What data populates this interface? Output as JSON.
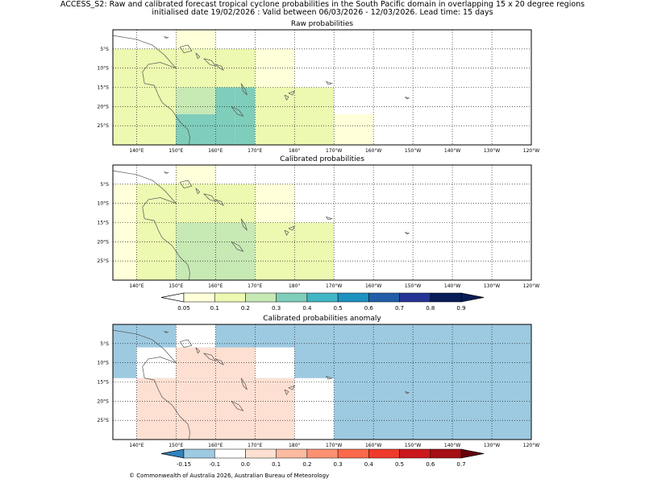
{
  "figure": {
    "title_line1": "ACCESS_S2: Raw and calibrated forecast tropical cyclone probabilities in the South Pacific domain in overlapping 15 x 20 degree regions",
    "title_line2": "initialised date 19/02/2026 :  Valid between 06/03/2026 - 12/03/2026. Lead time: 15 days",
    "copyright": "© Commonwealth of Australia 2026, Australian Bureau of Meteorology"
  },
  "chart_data": [
    {
      "type": "heatmap",
      "title": "Raw probabilities",
      "xlim": [
        134,
        240
      ],
      "ylim": [
        -30,
        0
      ],
      "x_ticks": [
        140,
        150,
        160,
        170,
        180,
        190,
        200,
        210,
        220,
        230,
        240
      ],
      "x_tick_labels": [
        "140°E",
        "150°E",
        "160°E",
        "170°E",
        "180°",
        "170°W",
        "160°W",
        "150°W",
        "140°W",
        "130°W",
        "120°W"
      ],
      "y_ticks": [
        -5,
        -10,
        -15,
        -20,
        -25
      ],
      "y_tick_labels": [
        "5°S",
        "10°S",
        "15°S",
        "20°S",
        "25°S"
      ],
      "grid": true,
      "cells": [
        {
          "lon": [
            134,
            150
          ],
          "lat": [
            -30,
            -5
          ],
          "value": 0.1
        },
        {
          "lon": [
            150,
            160
          ],
          "lat": [
            -5,
            0
          ],
          "value": 0.05
        },
        {
          "lon": [
            150,
            170
          ],
          "lat": [
            -15,
            -5
          ],
          "value": 0.1
        },
        {
          "lon": [
            170,
            180
          ],
          "lat": [
            -15,
            -5
          ],
          "value": 0.05
        },
        {
          "lon": [
            150,
            160
          ],
          "lat": [
            -22,
            -15
          ],
          "value": 0.2
        },
        {
          "lon": [
            160,
            165
          ],
          "lat": [
            -30,
            -15
          ],
          "value": 0.3
        },
        {
          "lon": [
            150,
            160
          ],
          "lat": [
            -30,
            -22
          ],
          "value": 0.3
        },
        {
          "lon": [
            165,
            170
          ],
          "lat": [
            -30,
            -15
          ],
          "value": 0.3
        },
        {
          "lon": [
            170,
            190
          ],
          "lat": [
            -30,
            -15
          ],
          "value": 0.1
        },
        {
          "lon": [
            190,
            200
          ],
          "lat": [
            -30,
            -22
          ],
          "value": 0.05
        }
      ]
    },
    {
      "type": "heatmap",
      "title": "Calibrated probabilities",
      "xlim": [
        134,
        240
      ],
      "ylim": [
        -30,
        0
      ],
      "x_ticks": [
        140,
        150,
        160,
        170,
        180,
        190,
        200,
        210,
        220,
        230,
        240
      ],
      "x_tick_labels": [
        "140°E",
        "150°E",
        "160°E",
        "170°E",
        "180°",
        "170°W",
        "160°W",
        "150°W",
        "140°W",
        "130°W",
        "120°W"
      ],
      "y_ticks": [
        -5,
        -10,
        -15,
        -20,
        -25
      ],
      "y_tick_labels": [
        "5°S",
        "10°S",
        "15°S",
        "20°S",
        "25°S"
      ],
      "grid": true,
      "cells": [
        {
          "lon": [
            134,
            150
          ],
          "lat": [
            -30,
            -5
          ],
          "value": 0.05
        },
        {
          "lon": [
            150,
            160
          ],
          "lat": [
            -5,
            0
          ],
          "value": 0.05
        },
        {
          "lon": [
            140,
            150
          ],
          "lat": [
            -30,
            -5
          ],
          "value": 0.1
        },
        {
          "lon": [
            150,
            170
          ],
          "lat": [
            -15,
            -5
          ],
          "value": 0.1
        },
        {
          "lon": [
            170,
            180
          ],
          "lat": [
            -15,
            -5
          ],
          "value": 0.05
        },
        {
          "lon": [
            150,
            170
          ],
          "lat": [
            -30,
            -15
          ],
          "value": 0.2
        },
        {
          "lon": [
            170,
            190
          ],
          "lat": [
            -30,
            -15
          ],
          "value": 0.1
        }
      ]
    },
    {
      "type": "heatmap",
      "title": "Calibrated probabilities anomaly",
      "xlim": [
        134,
        240
      ],
      "ylim": [
        -30,
        0
      ],
      "x_ticks": [
        140,
        150,
        160,
        170,
        180,
        190,
        200,
        210,
        220,
        230,
        240
      ],
      "x_tick_labels": [
        "140°E",
        "150°E",
        "160°E",
        "170°E",
        "180°",
        "170°W",
        "160°W",
        "150°W",
        "140°W",
        "130°W",
        "120°W"
      ],
      "y_ticks": [
        -5,
        -10,
        -15,
        -20,
        -25
      ],
      "y_tick_labels": [
        "5°S",
        "10°S",
        "15°S",
        "20°S",
        "25°S"
      ],
      "grid": true,
      "cells": [
        {
          "lon": [
            134,
            240
          ],
          "lat": [
            -30,
            0
          ],
          "value": -0.15
        },
        {
          "lon": [
            150,
            160
          ],
          "lat": [
            -6,
            0
          ],
          "value": -0.1
        },
        {
          "lon": [
            140,
            150
          ],
          "lat": [
            -14,
            -6
          ],
          "value": -0.1
        },
        {
          "lon": [
            150,
            170
          ],
          "lat": [
            -14,
            -6
          ],
          "value": 0.0
        },
        {
          "lon": [
            170,
            180
          ],
          "lat": [
            -14,
            -6
          ],
          "value": -0.1
        },
        {
          "lon": [
            134,
            140
          ],
          "lat": [
            -30,
            -14
          ],
          "value": -0.1
        },
        {
          "lon": [
            140,
            150
          ],
          "lat": [
            -30,
            -14
          ],
          "value": 0.0
        },
        {
          "lon": [
            150,
            170
          ],
          "lat": [
            -30,
            -14
          ],
          "value": 0.05
        },
        {
          "lon": [
            170,
            180
          ],
          "lat": [
            -30,
            -14
          ],
          "value": 0.0
        },
        {
          "lon": [
            180,
            190
          ],
          "lat": [
            -30,
            -14
          ],
          "value": -0.1
        }
      ]
    }
  ],
  "colorbars": {
    "probability": {
      "tick_labels": [
        "0.05",
        "0.1",
        "0.2",
        "0.3",
        "0.4",
        "0.5",
        "0.6",
        "0.7",
        "0.8",
        "0.9"
      ],
      "colors": [
        "#ffffd9",
        "#edf8b1",
        "#c7e9b4",
        "#7fcdbb",
        "#41b6c4",
        "#1d91c0",
        "#225ea8",
        "#253494",
        "#081d58"
      ],
      "under_color": "#ffffff",
      "over_color": "#081d58"
    },
    "anomaly": {
      "tick_labels": [
        "-0.15",
        "-0.1",
        "0.0",
        "0.1",
        "0.2",
        "0.3",
        "0.4",
        "0.5",
        "0.6",
        "0.7"
      ],
      "colors": [
        "#9ecae1",
        "#ffffff",
        "#fee0d2",
        "#fcbba1",
        "#fc9272",
        "#fb6a4a",
        "#ef3b2c",
        "#cb181d",
        "#a50f15"
      ],
      "under_color": "#3182bd",
      "over_color": "#67000d"
    }
  }
}
